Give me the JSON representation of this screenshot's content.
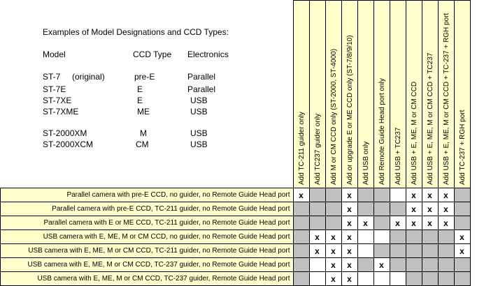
{
  "examples": {
    "title": "Examples of Model Designations and CCD Types:",
    "headers": {
      "model": "Model",
      "ccd": "CCD Type",
      "electronics": "Electronics"
    },
    "rows": [
      {
        "model": "ST-7     (original)",
        "ccd": "pre-E",
        "electronics": "Parallel"
      },
      {
        "model": "ST-7E",
        "ccd": "E",
        "electronics": "Parallel"
      },
      {
        "model": "ST-7XE",
        "ccd": "E",
        "electronics": "USB"
      },
      {
        "model": "ST-7XME",
        "ccd": "ME",
        "electronics": "USB"
      },
      {
        "model": "ST-2000XM",
        "ccd": "M",
        "electronics": "USB"
      },
      {
        "model": "ST-2000XCM",
        "ccd": "CM",
        "electronics": "USB"
      }
    ]
  },
  "columns": [
    "Add TC-211 guider only",
    "Add TC237 guider only",
    "Add M or CM CCD only (ST-2000, ST-4000)",
    "Add or upgrade E or ME CCD only (ST-7/8/9/10)",
    "Add USB only",
    "Add Remote Guide Head port only",
    "Add USB + TC237",
    "Add USB + E, ME, M or CM CCD",
    "Add USB + E, ME, M or CM CCD + TC237",
    "Add USB + E, ME, M or CM CCD + TC-237 + RGH port",
    "Add TC-237 + RGH port"
  ],
  "rows": [
    {
      "label": "Parallel camera with pre-E CCD, no guider, no Remote Guide Head port",
      "cells": [
        "x",
        "",
        "",
        "x",
        "",
        "",
        "",
        "x",
        "x",
        "x",
        ""
      ]
    },
    {
      "label": "Parallel camera with pre-E CCD, TC-211 guider, no Remote Guide Head port",
      "cells": [
        "",
        "",
        "",
        "x",
        "",
        "",
        "",
        "x",
        "x",
        "x",
        ""
      ]
    },
    {
      "label": "Parallel camera with E or ME CCD, TC-211 guider, no Remote Guide Head port",
      "cells": [
        "",
        "",
        "",
        "x",
        "x",
        "",
        "x",
        "x",
        "x",
        "x",
        ""
      ]
    },
    {
      "label": "USB camera with E, ME, M or CM CCD, no guider, no Remote Guide Head port",
      "cells": [
        "",
        "x",
        "x",
        "x",
        "",
        "",
        "",
        "",
        "",
        "",
        "x"
      ]
    },
    {
      "label": "USB camera with E, ME, M or CM CCD, TC-211 guider, no Remote Guide Head port",
      "cells": [
        "",
        "x",
        "x",
        "x",
        "",
        "",
        "",
        "",
        "",
        "",
        "x"
      ]
    },
    {
      "label": "USB camera with E, ME, M or CM CCD, TC-237 guider, no Remote Guide Head port",
      "cells": [
        "",
        "",
        "x",
        "x",
        "",
        "x",
        "",
        "",
        "",
        "",
        ""
      ]
    },
    {
      "label": "USB camera with E, ME, M or CM CCD, TC-237 guider, Remote Guide Head port",
      "cells": [
        "",
        "",
        "x",
        "x",
        "",
        "",
        "",
        "",
        "",
        "",
        ""
      ]
    }
  ],
  "blank_cells": [
    [
      0,
      6
    ],
    [
      3,
      4
    ],
    [
      3,
      5
    ],
    [
      4,
      4
    ],
    [
      5,
      1
    ],
    [
      6,
      1
    ],
    [
      6,
      4
    ],
    [
      6,
      5
    ],
    [
      6,
      6
    ]
  ],
  "colors": {
    "header_bg": "#ffffcc",
    "empty_cell": "#c0c0c0",
    "check_cell": "#ffffff"
  }
}
